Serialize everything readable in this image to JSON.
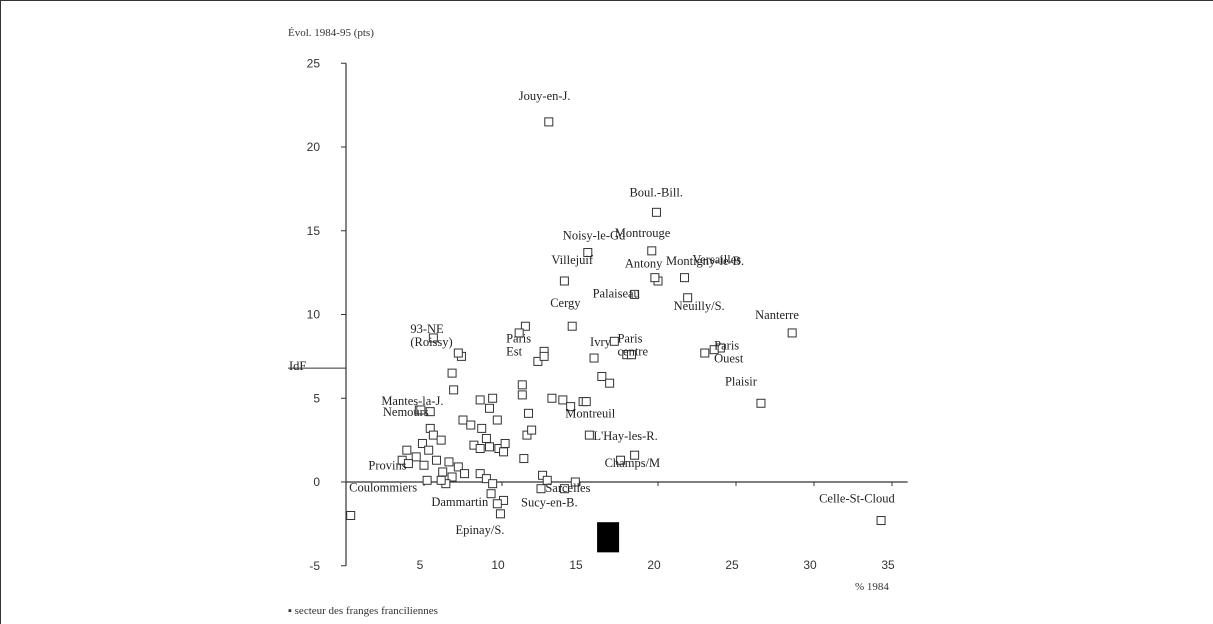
{
  "chart_data": {
    "type": "scatter",
    "title": "",
    "ylabel": "Évol. 1984-95 (pts)",
    "xlabel": "% 1984",
    "xlim": [
      0,
      36
    ],
    "ylim": [
      -5,
      25
    ],
    "x_ticks": [
      5,
      10,
      15,
      20,
      25,
      30,
      35
    ],
    "y_ticks": [
      -5,
      0,
      5,
      10,
      15,
      20,
      25
    ],
    "idf_marker": {
      "label": "IdF",
      "y": 6.8
    },
    "footnote": "▪ secteur des franges franciliennes",
    "labeled_points": [
      {
        "label": "Jouy-en-J.",
        "x": 13,
        "y": 21.5
      },
      {
        "label": "Boul.-Bill.",
        "x": 19.9,
        "y": 16.1
      },
      {
        "label": "Montrouge",
        "x": 19.6,
        "y": 13.8
      },
      {
        "label": "Noisy-le-Gd",
        "x": 15.5,
        "y": 13.7
      },
      {
        "label": "Montigny-le-B.",
        "x": 20,
        "y": 12
      },
      {
        "label": "Villejuif",
        "x": 14,
        "y": 12
      },
      {
        "label": "Antony",
        "x": 19.8,
        "y": 12.2
      },
      {
        "label": "Versailles",
        "x": 21.7,
        "y": 12.2
      },
      {
        "label": "Palaiseau",
        "x": 18.5,
        "y": 11.2
      },
      {
        "label": "Cergy",
        "x": 14.5,
        "y": 9.3
      },
      {
        "label": "Neuilly/S.",
        "x": 21.9,
        "y": 11
      },
      {
        "label": "Nanterre",
        "x": 28.6,
        "y": 8.9
      },
      {
        "label": "93-NE (Roissy)",
        "x": 7.2,
        "y": 7.7
      },
      {
        "label": "Paris Ouest",
        "x": 23.6,
        "y": 7.9
      },
      {
        "label": "Paris Est",
        "x": 12.7,
        "y": 7.5
      },
      {
        "label": "Ivry",
        "x": 15.9,
        "y": 7.4
      },
      {
        "label": "Paris centre",
        "x": 18.3,
        "y": 7.6
      },
      {
        "label": "Mantes-la-J.",
        "x": 4.7,
        "y": 4.3
      },
      {
        "label": "Nemours",
        "x": 4.8,
        "y": 4.3
      },
      {
        "label": "Plaisir",
        "x": 26.6,
        "y": 4.7
      },
      {
        "label": "Montreuil",
        "x": 15.4,
        "y": 4.8
      },
      {
        "label": "L'Hay-les-R.",
        "x": 15.6,
        "y": 2.8
      },
      {
        "label": "Champs/M",
        "x": 18.5,
        "y": 1.6
      },
      {
        "label": "Provins",
        "x": 4,
        "y": 1.1
      },
      {
        "label": "Coulommiers",
        "x": 5.2,
        "y": 0.1
      },
      {
        "label": "Sarcelles",
        "x": 14.7,
        "y": 0
      },
      {
        "label": "Dammartin",
        "x": 9.7,
        "y": -1.3
      },
      {
        "label": "Sucy-en-B.",
        "x": 12.5,
        "y": -0.4
      },
      {
        "label": "Epinay/S.",
        "x": 9.9,
        "y": -1.9
      },
      {
        "label": "Celle-St-Cloud",
        "x": 34.3,
        "y": -2.3
      }
    ],
    "other_points": [
      [
        0.3,
        -2
      ],
      [
        5.6,
        8.6
      ],
      [
        7.4,
        7.5
      ],
      [
        11.5,
        9.3
      ],
      [
        11.1,
        8.9
      ],
      [
        12.7,
        7.8
      ],
      [
        12.3,
        7.2
      ],
      [
        17.2,
        8.4
      ],
      [
        18,
        7.6
      ],
      [
        6.8,
        6.5
      ],
      [
        6.9,
        5.5
      ],
      [
        11.3,
        5.8
      ],
      [
        11.3,
        5.2
      ],
      [
        16.4,
        6.3
      ],
      [
        16.9,
        5.9
      ],
      [
        23,
        7.7
      ],
      [
        24,
        8
      ],
      [
        5.4,
        4.2
      ],
      [
        8.6,
        4.9
      ],
      [
        9.4,
        5
      ],
      [
        9.2,
        4.4
      ],
      [
        11.7,
        4.1
      ],
      [
        13.2,
        5
      ],
      [
        13.9,
        4.9
      ],
      [
        14.4,
        4.5
      ],
      [
        15.2,
        4.8
      ],
      [
        7.5,
        3.7
      ],
      [
        8,
        3.4
      ],
      [
        8.7,
        3.2
      ],
      [
        9.7,
        3.7
      ],
      [
        11.6,
        2.8
      ],
      [
        11.9,
        3.1
      ],
      [
        9,
        2.6
      ],
      [
        8.2,
        2.2
      ],
      [
        8.6,
        2
      ],
      [
        9.2,
        2.1
      ],
      [
        9.8,
        2
      ],
      [
        10.2,
        2.3
      ],
      [
        10.1,
        1.8
      ],
      [
        5.4,
        3.2
      ],
      [
        5.6,
        2.8
      ],
      [
        6.1,
        2.5
      ],
      [
        4.9,
        2.3
      ],
      [
        5.3,
        1.9
      ],
      [
        3.9,
        1.9
      ],
      [
        4.5,
        1.5
      ],
      [
        5.8,
        1.3
      ],
      [
        6.6,
        1.2
      ],
      [
        7.2,
        0.9
      ],
      [
        7.6,
        0.5
      ],
      [
        8.6,
        0.5
      ],
      [
        9,
        0.2
      ],
      [
        6.2,
        0.6
      ],
      [
        6.8,
        0.3
      ],
      [
        6.4,
        -0.1
      ],
      [
        6.1,
        0.1
      ],
      [
        12.6,
        0.4
      ],
      [
        12.9,
        0.1
      ],
      [
        9.4,
        -0.1
      ],
      [
        9.3,
        -0.7
      ],
      [
        14,
        -0.4
      ],
      [
        11.4,
        1.4
      ],
      [
        17.6,
        1.3
      ],
      [
        10.1,
        -1.1
      ],
      [
        5,
        1
      ],
      [
        3.6,
        1.3
      ]
    ],
    "highlight_bar": {
      "x": 16.8,
      "y_from": -2.4,
      "y_to": -4.2,
      "color": "#000000"
    }
  }
}
